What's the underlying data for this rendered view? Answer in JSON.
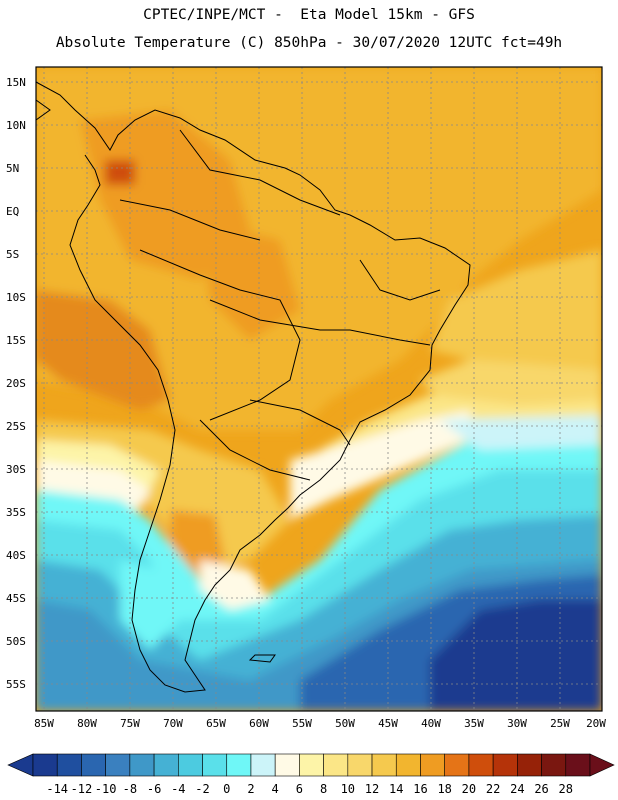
{
  "header": {
    "line1": "CPTEC/INPE/MCT -  Eta Model 15km - GFS",
    "line2": "Absolute Temperature (C) 850hPa - 30/07/2020 12UTC fct=49h"
  },
  "axes": {
    "lat_labels": [
      "15N",
      "10N",
      "5N",
      "EQ",
      "5S",
      "10S",
      "15S",
      "20S",
      "25S",
      "30S",
      "35S",
      "40S",
      "45S",
      "50S",
      "55S"
    ],
    "lon_labels": [
      "85W",
      "80W",
      "75W",
      "70W",
      "65W",
      "60W",
      "55W",
      "50W",
      "45W",
      "40W",
      "35W",
      "30W",
      "25W",
      "20W"
    ]
  },
  "colorbar": {
    "labels": [
      "-14",
      "-12",
      "-10",
      "-8",
      "-6",
      "-4",
      "-2",
      "0",
      "2",
      "4",
      "6",
      "8",
      "10",
      "12",
      "14",
      "16",
      "18",
      "20",
      "22",
      "24",
      "26",
      "28"
    ],
    "colors": [
      "#1a3a8f",
      "#1f4f9f",
      "#2a66b0",
      "#3a80bf",
      "#3f98c8",
      "#45b1d4",
      "#4ccbe0",
      "#5ae0ea",
      "#6ff7f7",
      "#ccf4f9",
      "#fffae6",
      "#fdf4a8",
      "#fbe687",
      "#f8d76b",
      "#f5c94e",
      "#f2b52f",
      "#ef9c22",
      "#e57417",
      "#cf4e0c",
      "#b53309",
      "#962208",
      "#7a1710",
      "#6a0f1a"
    ]
  }
}
